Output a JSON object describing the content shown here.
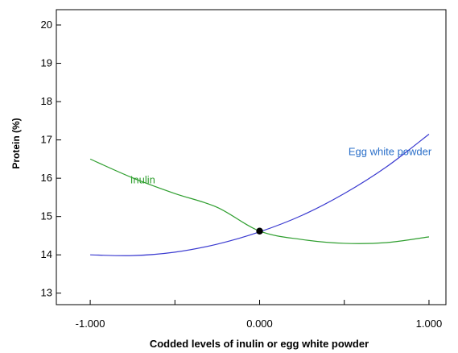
{
  "chart_data": {
    "type": "line",
    "xlabel": "Codded levels of inulin or egg white powder",
    "ylabel": "Protein (%)",
    "xlim": [
      -1.2,
      1.1
    ],
    "ylim": [
      12.7,
      20.4
    ],
    "x_tick_values": [
      -1.0,
      -0.5,
      0.0,
      0.5,
      1.0
    ],
    "x_tick_labels": [
      "-1.000",
      "",
      "0.000",
      "",
      "1.000"
    ],
    "y_ticks": [
      13,
      14,
      15,
      16,
      17,
      18,
      19,
      20
    ],
    "y_tick_labels": [
      "13",
      "14",
      "15",
      "16",
      "17",
      "18",
      "19",
      "20"
    ],
    "grid": false,
    "series": [
      {
        "name": "Inulin",
        "color": "#2e9e2e",
        "label_position": [
          -0.69,
          15.87
        ],
        "x": [
          -1.0,
          -0.75,
          -0.5,
          -0.25,
          0.0,
          0.25,
          0.5,
          0.75,
          1.0
        ],
        "y": [
          16.5,
          16.01,
          15.6,
          15.24,
          14.62,
          14.4,
          14.3,
          14.32,
          14.47
        ]
      },
      {
        "name": "Egg white powder",
        "color": "#3a3ad0",
        "label_position": [
          0.77,
          16.6
        ],
        "x": [
          -1.0,
          -0.75,
          -0.5,
          -0.25,
          0.0,
          0.25,
          0.5,
          0.75,
          1.0
        ],
        "y": [
          14.0,
          13.98,
          14.07,
          14.28,
          14.6,
          15.03,
          15.6,
          16.3,
          17.15
        ]
      }
    ],
    "center_point": {
      "x": 0.0,
      "y": 14.62
    }
  }
}
